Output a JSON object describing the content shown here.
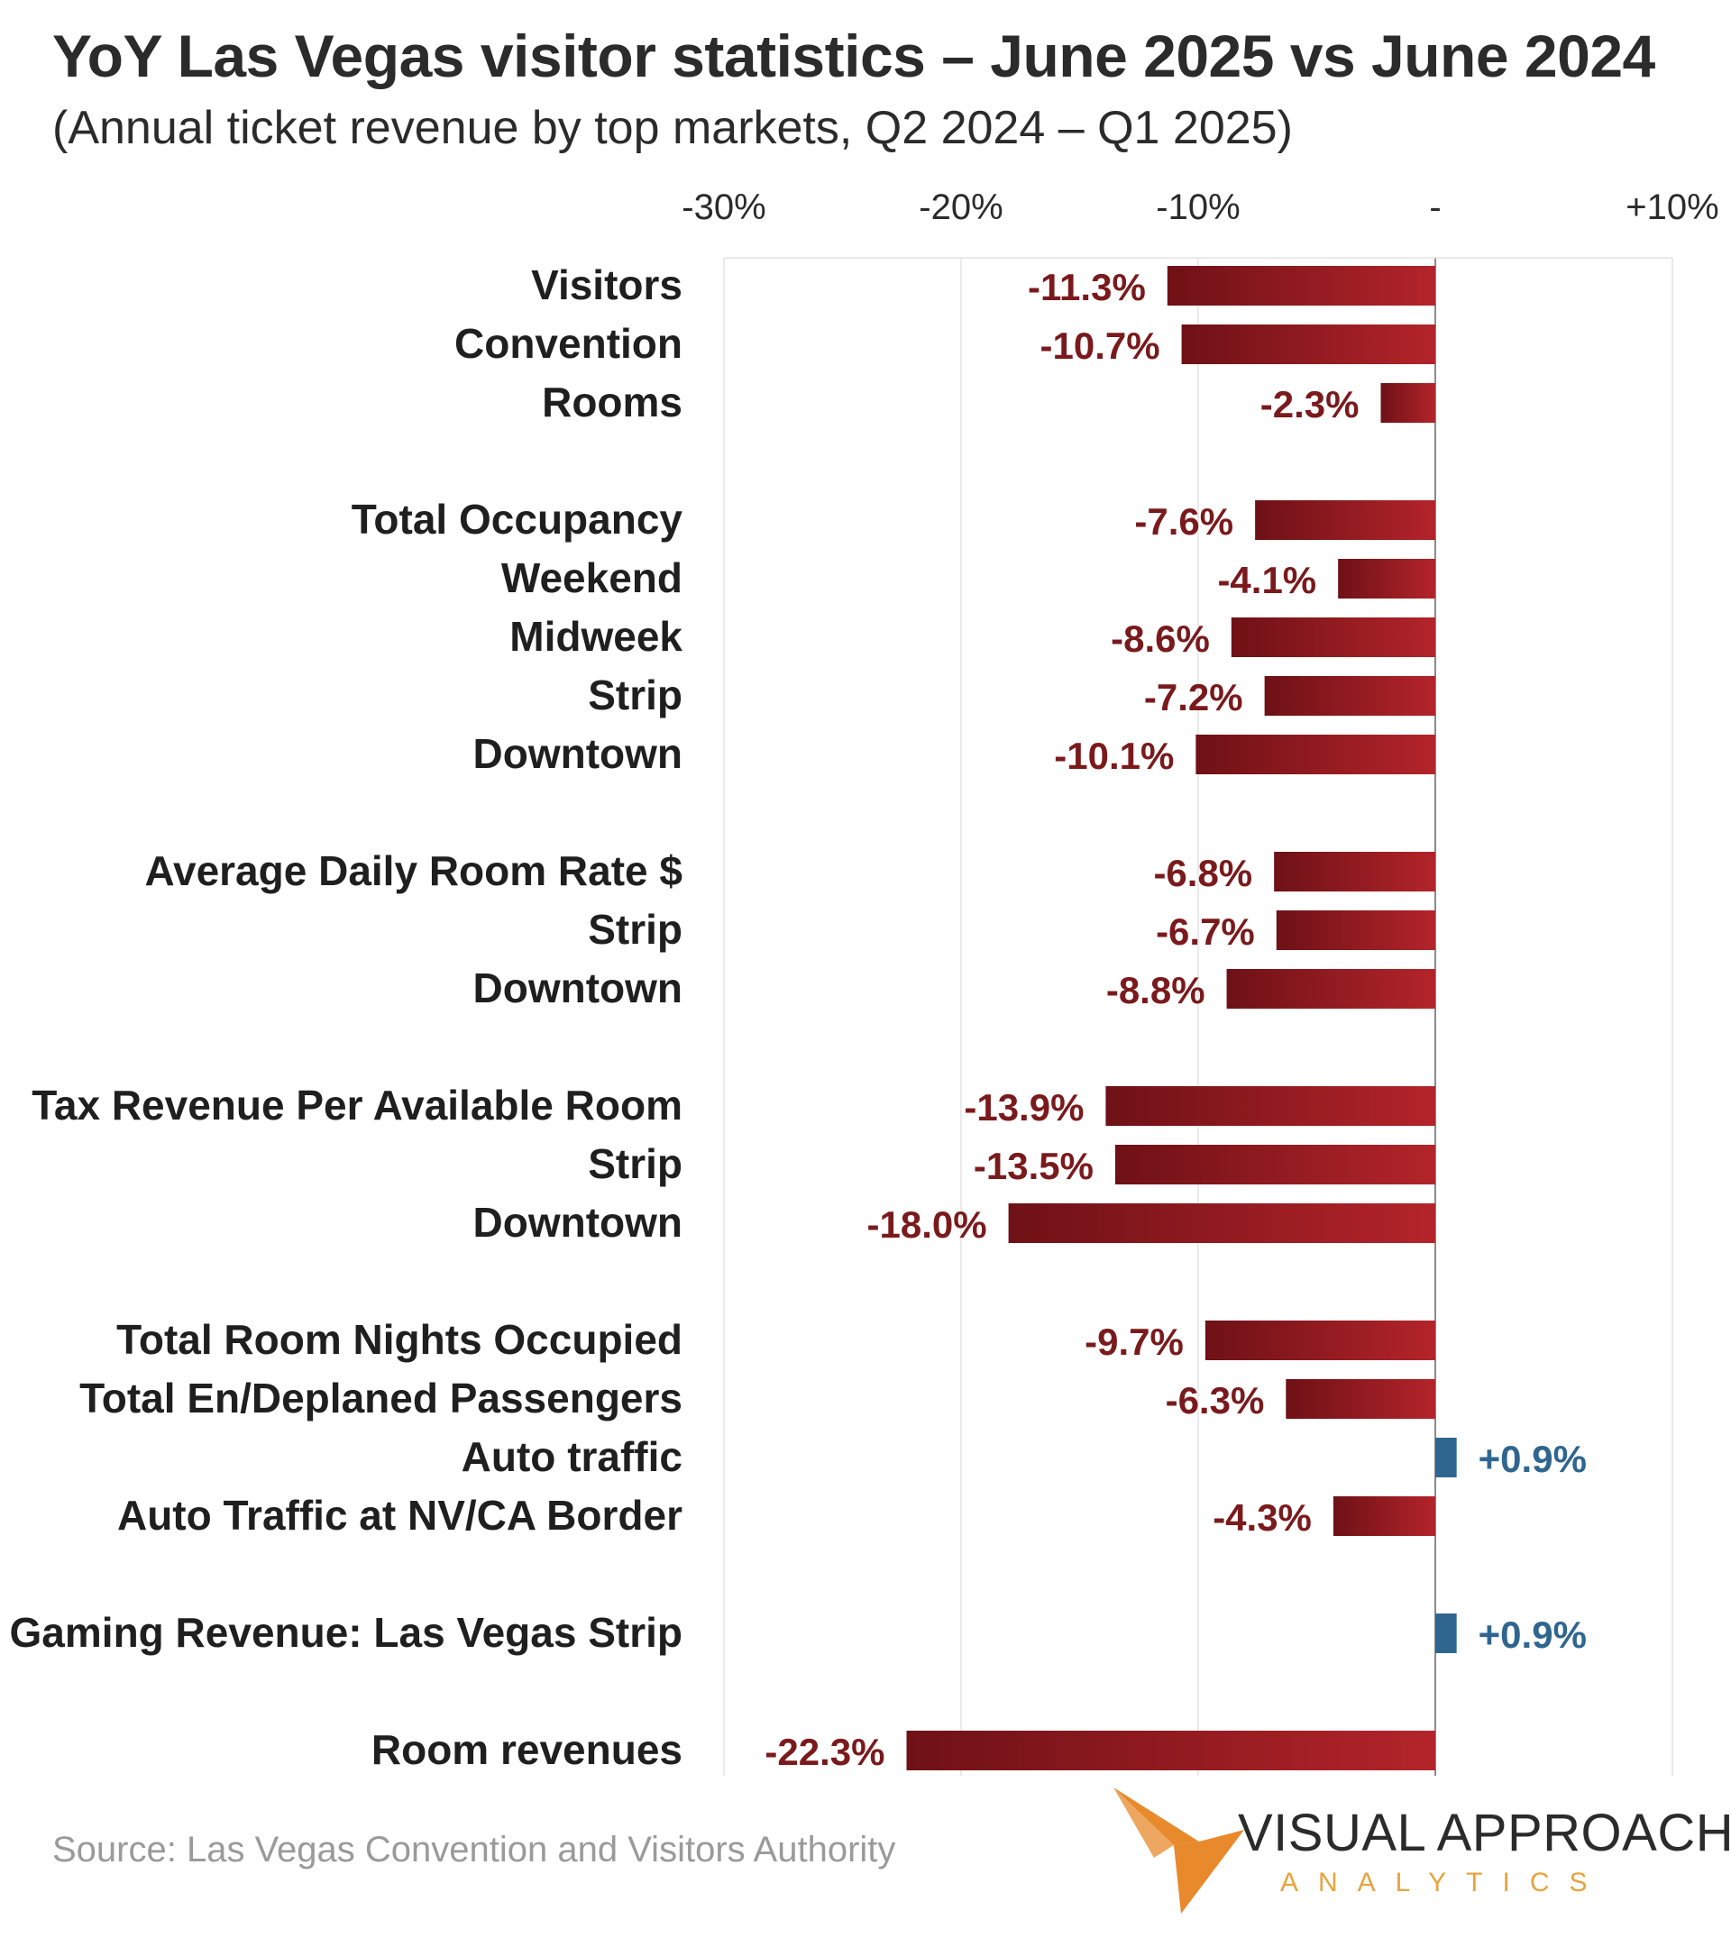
{
  "title": "YoY Las Vegas visitor statistics – June 2025 vs June 2024",
  "subtitle": "(Annual ticket revenue by top markets, Q2 2024 – Q1 2025)",
  "source": "Source:  Las Vegas Convention and Visitors Authority",
  "logo": {
    "line1": "VISUAL APPROACH",
    "line2": "ANALYTICS",
    "arrow_color": "#e8892b"
  },
  "colors": {
    "negative_dark": "#6e1116",
    "negative_bright": "#b3242a",
    "negative_label": "#7a1a1c",
    "positive": "#2f6690",
    "positive_label": "#2f6690",
    "grid": "#e3e3e3",
    "zero_line": "#8a8a8a"
  },
  "chart_data": {
    "type": "bar",
    "orientation": "horizontal",
    "xlim": [
      -30,
      10
    ],
    "xticks": [
      -30,
      -20,
      -10,
      0,
      10
    ],
    "xtick_labels": [
      "-30%",
      "-20%",
      "-10%",
      "-",
      "+10%"
    ],
    "grid": true,
    "categories": [
      "Visitors",
      "Convention",
      "Rooms",
      "Total Occupancy",
      "Weekend",
      "Midweek",
      "Strip",
      "Downtown",
      "Average Daily Room Rate $",
      "Strip",
      "Downtown",
      "Tax Revenue Per Available Room",
      "Strip",
      "Downtown",
      "Total Room Nights Occupied",
      "Total En/Deplaned Passengers",
      "Auto traffic",
      "Auto Traffic at NV/CA Border",
      "Gaming Revenue: Las Vegas Strip",
      "Room revenues"
    ],
    "values": [
      -11.3,
      -10.7,
      -2.3,
      -7.6,
      -4.1,
      -8.6,
      -7.2,
      -10.1,
      -6.8,
      -6.7,
      -8.8,
      -13.9,
      -13.5,
      -18.0,
      -9.7,
      -6.3,
      0.9,
      -4.3,
      0.9,
      -22.3
    ],
    "data_labels": [
      "-11.3%",
      "-10.7%",
      "-2.3%",
      "-7.6%",
      "-4.1%",
      "-8.6%",
      "-7.2%",
      "-10.1%",
      "-6.8%",
      "-6.7%",
      "-8.8%",
      "-13.9%",
      "-13.5%",
      "-18.0%",
      "-9.7%",
      "-6.3%",
      "+0.9%",
      "-4.3%",
      "+0.9%",
      "-22.3%"
    ],
    "groups": [
      1,
      1,
      1,
      2,
      2,
      2,
      2,
      2,
      3,
      3,
      3,
      4,
      4,
      4,
      5,
      5,
      5,
      5,
      6,
      7
    ]
  }
}
